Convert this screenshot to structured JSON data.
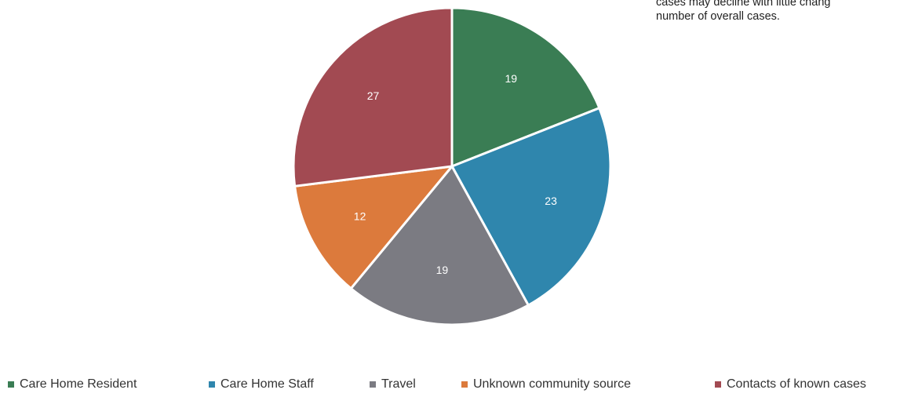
{
  "note": {
    "line1": "cases may decline with little chang",
    "line2": "number of overall cases."
  },
  "chart_data": {
    "type": "pie",
    "title": "",
    "slices": [
      {
        "label": "Care Home Resident",
        "value": 19,
        "color": "#3a7d54"
      },
      {
        "label": "Care Home Staff",
        "value": 23,
        "color": "#2f86ad"
      },
      {
        "label": "Travel",
        "value": 19,
        "color": "#7b7b82"
      },
      {
        "label": "Unknown community source",
        "value": 12,
        "color": "#dc7a3c"
      },
      {
        "label": "Contacts of known cases",
        "value": 27,
        "color": "#a24a52"
      }
    ],
    "legend_position": "bottom",
    "data_labels": true
  }
}
